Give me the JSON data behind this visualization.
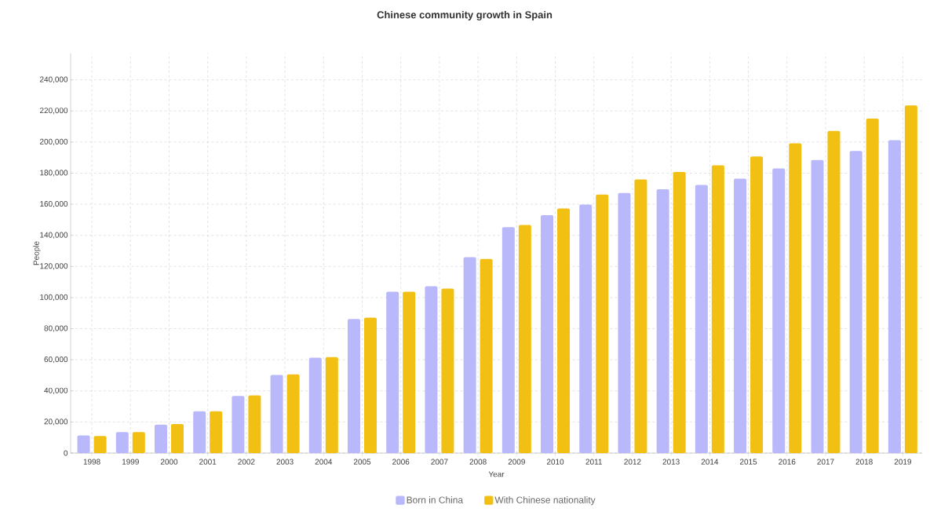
{
  "chart_data": {
    "type": "bar",
    "title": "Chinese community growth in Spain",
    "xlabel": "Year",
    "ylabel": "People",
    "categories": [
      "1998",
      "1999",
      "2000",
      "2001",
      "2002",
      "2003",
      "2004",
      "2005",
      "2006",
      "2007",
      "2008",
      "2009",
      "2010",
      "2011",
      "2012",
      "2013",
      "2014",
      "2015",
      "2016",
      "2017",
      "2018",
      "2019"
    ],
    "series": [
      {
        "name": "Born in China",
        "color": "#b8b8fa",
        "values": [
          11300,
          13500,
          18300,
          26900,
          36700,
          50200,
          61300,
          86200,
          103700,
          107300,
          126000,
          145300,
          153000,
          159800,
          167300,
          169700,
          172400,
          176400,
          183000,
          188400,
          194200,
          201200
        ]
      },
      {
        "name": "With Chinese nationality",
        "color": "#f2c012",
        "values": [
          11000,
          13500,
          18700,
          26900,
          37100,
          50600,
          61700,
          87100,
          103700,
          105800,
          124800,
          146700,
          157300,
          166200,
          176000,
          180700,
          185100,
          190700,
          199200,
          207100,
          215100,
          223600
        ]
      }
    ],
    "ylim": [
      0,
      257000
    ],
    "yticks": [
      {
        "value": 0,
        "label": "0"
      },
      {
        "value": 20000,
        "label": "20,000"
      },
      {
        "value": 40000,
        "label": "40,000"
      },
      {
        "value": 60000,
        "label": "60,000"
      },
      {
        "value": 80000,
        "label": "80,000"
      },
      {
        "value": 100000,
        "label": "100,000"
      },
      {
        "value": 120000,
        "label": "120,000"
      },
      {
        "value": 140000,
        "label": "140,000"
      },
      {
        "value": 160000,
        "label": "160,000"
      },
      {
        "value": 180000,
        "label": "180,000"
      },
      {
        "value": 200000,
        "label": "200,000"
      },
      {
        "value": 220000,
        "label": "220,000"
      },
      {
        "value": 240000,
        "label": "240,000"
      }
    ],
    "grid": true,
    "legend": "bottom"
  }
}
